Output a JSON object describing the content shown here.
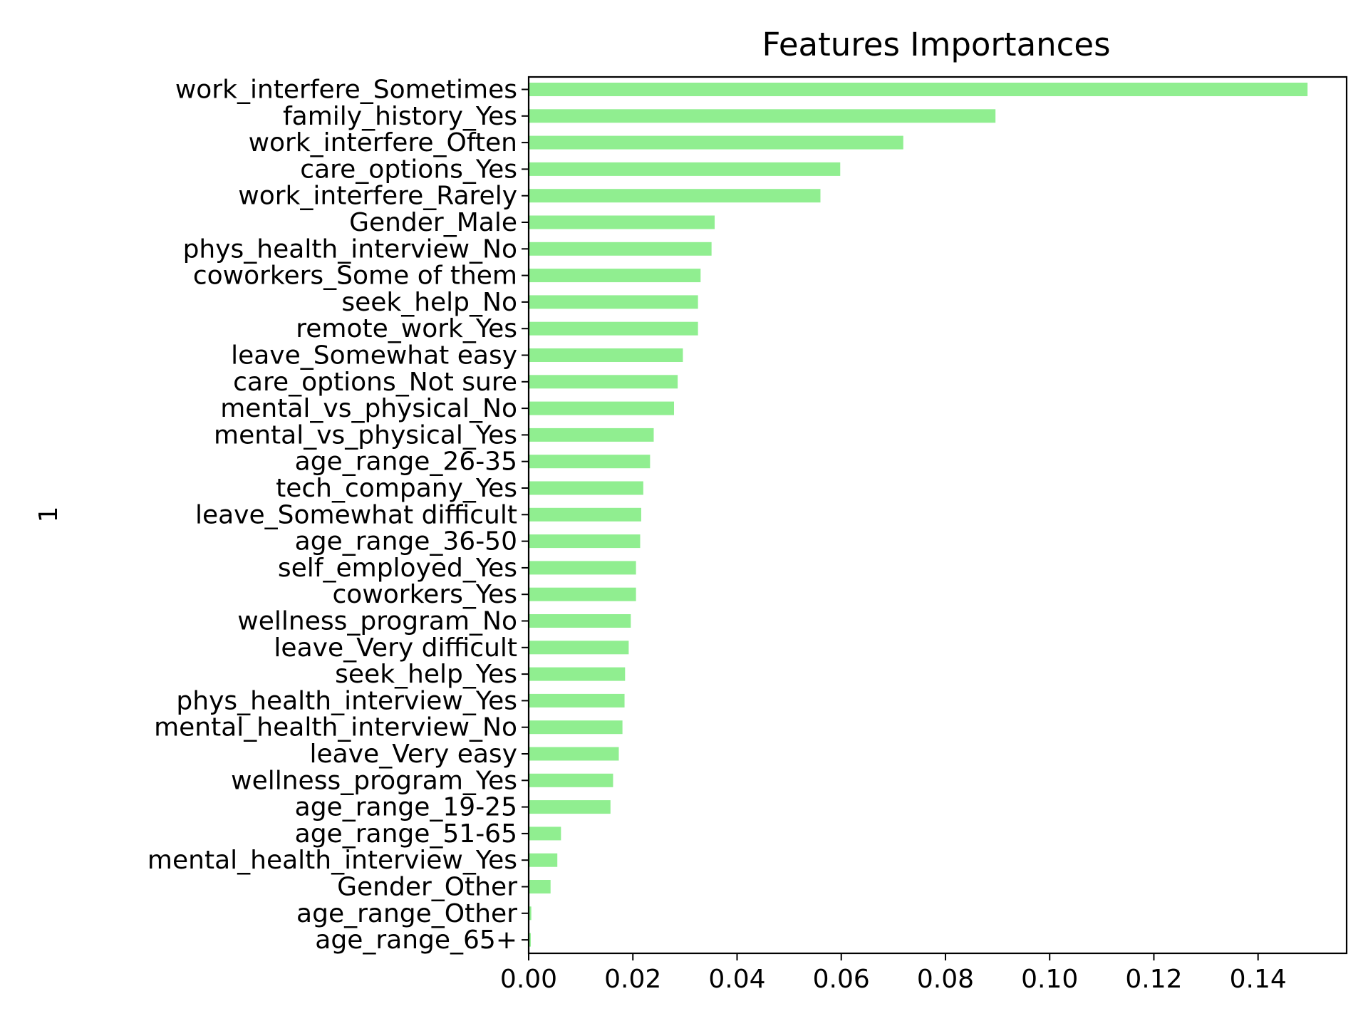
{
  "chart_data": {
    "type": "bar",
    "orientation": "horizontal",
    "title": "Features Importances",
    "xlabel": "",
    "ylabel": "1",
    "xlim": [
      0,
      0.157
    ],
    "xticks": [
      "0.00",
      "0.02",
      "0.04",
      "0.06",
      "0.08",
      "0.10",
      "0.12",
      "0.14"
    ],
    "grid": false,
    "bar_color": "#90ee90",
    "categories": [
      "work_interfere_Sometimes",
      "family_history_Yes",
      "work_interfere_Often",
      "care_options_Yes",
      "work_interfere_Rarely",
      "Gender_Male",
      "phys_health_interview_No",
      "coworkers_Some of them",
      "seek_help_No",
      "remote_work_Yes",
      "leave_Somewhat easy",
      "care_options_Not sure",
      "mental_vs_physical_No",
      "mental_vs_physical_Yes",
      "age_range_26-35",
      "tech_company_Yes",
      "leave_Somewhat difficult",
      "age_range_36-50",
      "self_employed_Yes",
      "coworkers_Yes",
      "wellness_program_No",
      "leave_Very difficult",
      "seek_help_Yes",
      "phys_health_interview_Yes",
      "mental_health_interview_No",
      "leave_Very easy",
      "wellness_program_Yes",
      "age_range_19-25",
      "age_range_51-65",
      "mental_health_interview_Yes",
      "Gender_Other",
      "age_range_Other",
      "age_range_65+"
    ],
    "values": [
      0.1495,
      0.0896,
      0.0719,
      0.0598,
      0.056,
      0.0357,
      0.0351,
      0.033,
      0.0325,
      0.0325,
      0.0296,
      0.0286,
      0.0279,
      0.024,
      0.0233,
      0.022,
      0.0216,
      0.0214,
      0.0206,
      0.0206,
      0.0196,
      0.0192,
      0.0185,
      0.0184,
      0.018,
      0.0173,
      0.0162,
      0.0157,
      0.0062,
      0.0055,
      0.0042,
      0.0005,
      0.0004
    ]
  }
}
